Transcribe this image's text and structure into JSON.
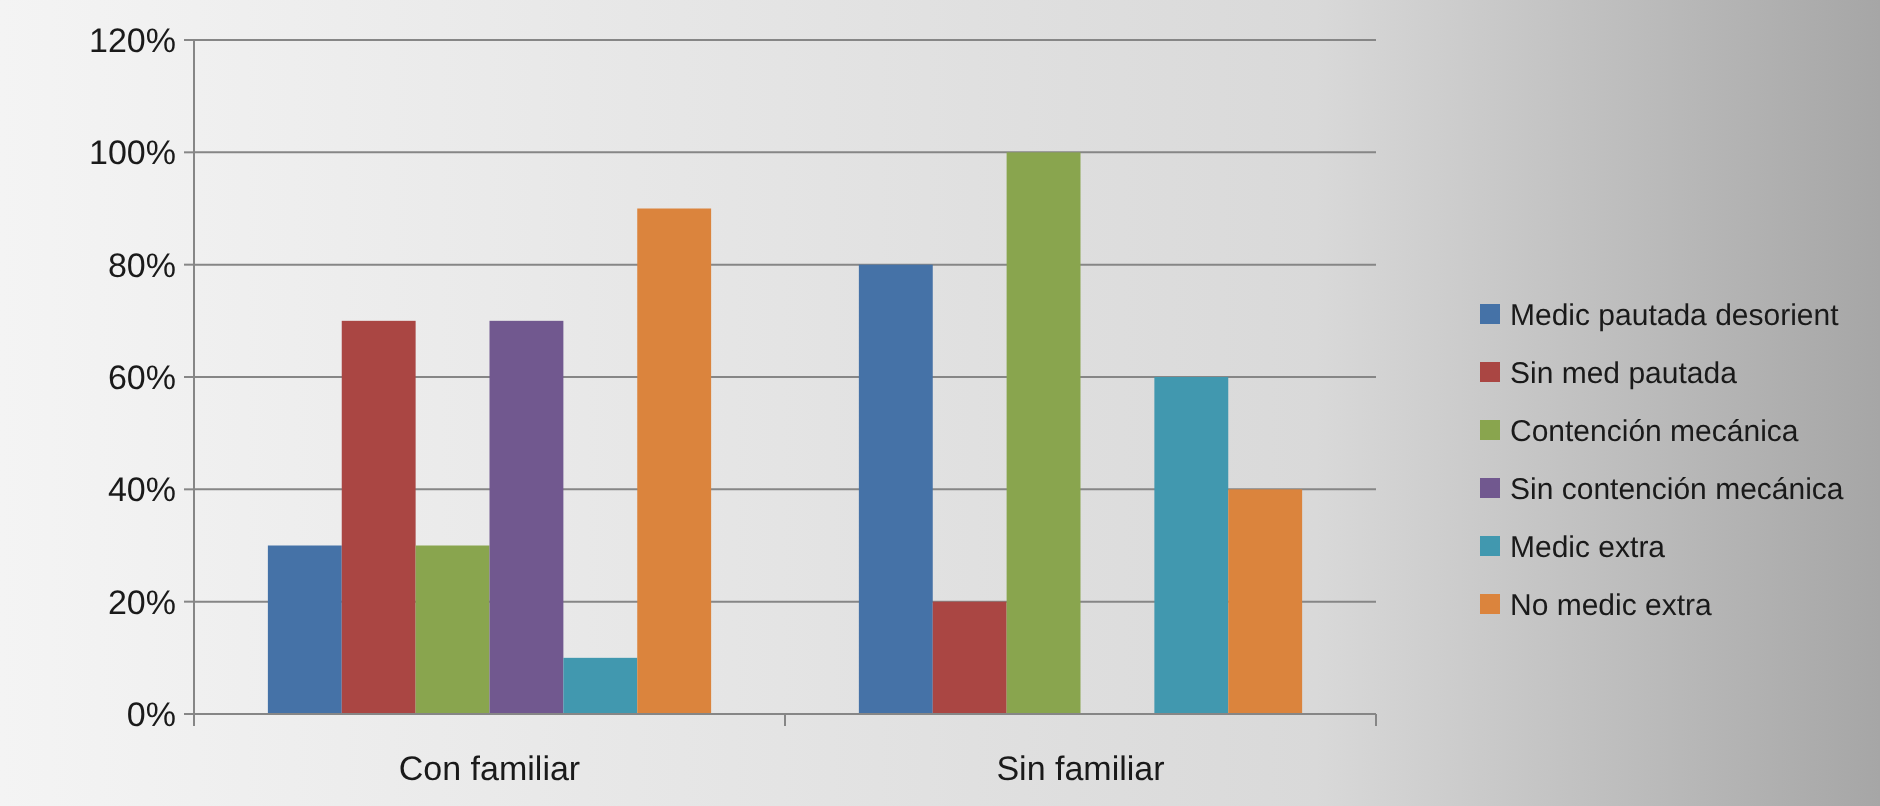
{
  "chart_data": {
    "type": "bar",
    "categories": [
      "Con familiar",
      "Sin familiar"
    ],
    "series": [
      {
        "name": "Medic pautada desorient",
        "color": "#4572a7",
        "values": [
          30,
          80
        ]
      },
      {
        "name": "Sin med pautada",
        "color": "#aa4643",
        "values": [
          70,
          20
        ]
      },
      {
        "name": "Contención mecánica",
        "color": "#89a54e",
        "values": [
          30,
          100
        ]
      },
      {
        "name": "Sin contención mecánica",
        "color": "#71588f",
        "values": [
          70,
          0
        ]
      },
      {
        "name": "Medic extra",
        "color": "#4198af",
        "values": [
          10,
          60
        ]
      },
      {
        "name": "No medic extra",
        "color": "#db843d",
        "values": [
          90,
          40
        ]
      }
    ],
    "ylim": [
      0,
      120
    ],
    "yticks": [
      {
        "value": 0,
        "label": "0%"
      },
      {
        "value": 20,
        "label": "20%"
      },
      {
        "value": 40,
        "label": "40%"
      },
      {
        "value": 60,
        "label": "60%"
      },
      {
        "value": 80,
        "label": "80%"
      },
      {
        "value": 100,
        "label": "100%"
      },
      {
        "value": 120,
        "label": "120%"
      }
    ],
    "grid": "y",
    "legend": "right"
  }
}
